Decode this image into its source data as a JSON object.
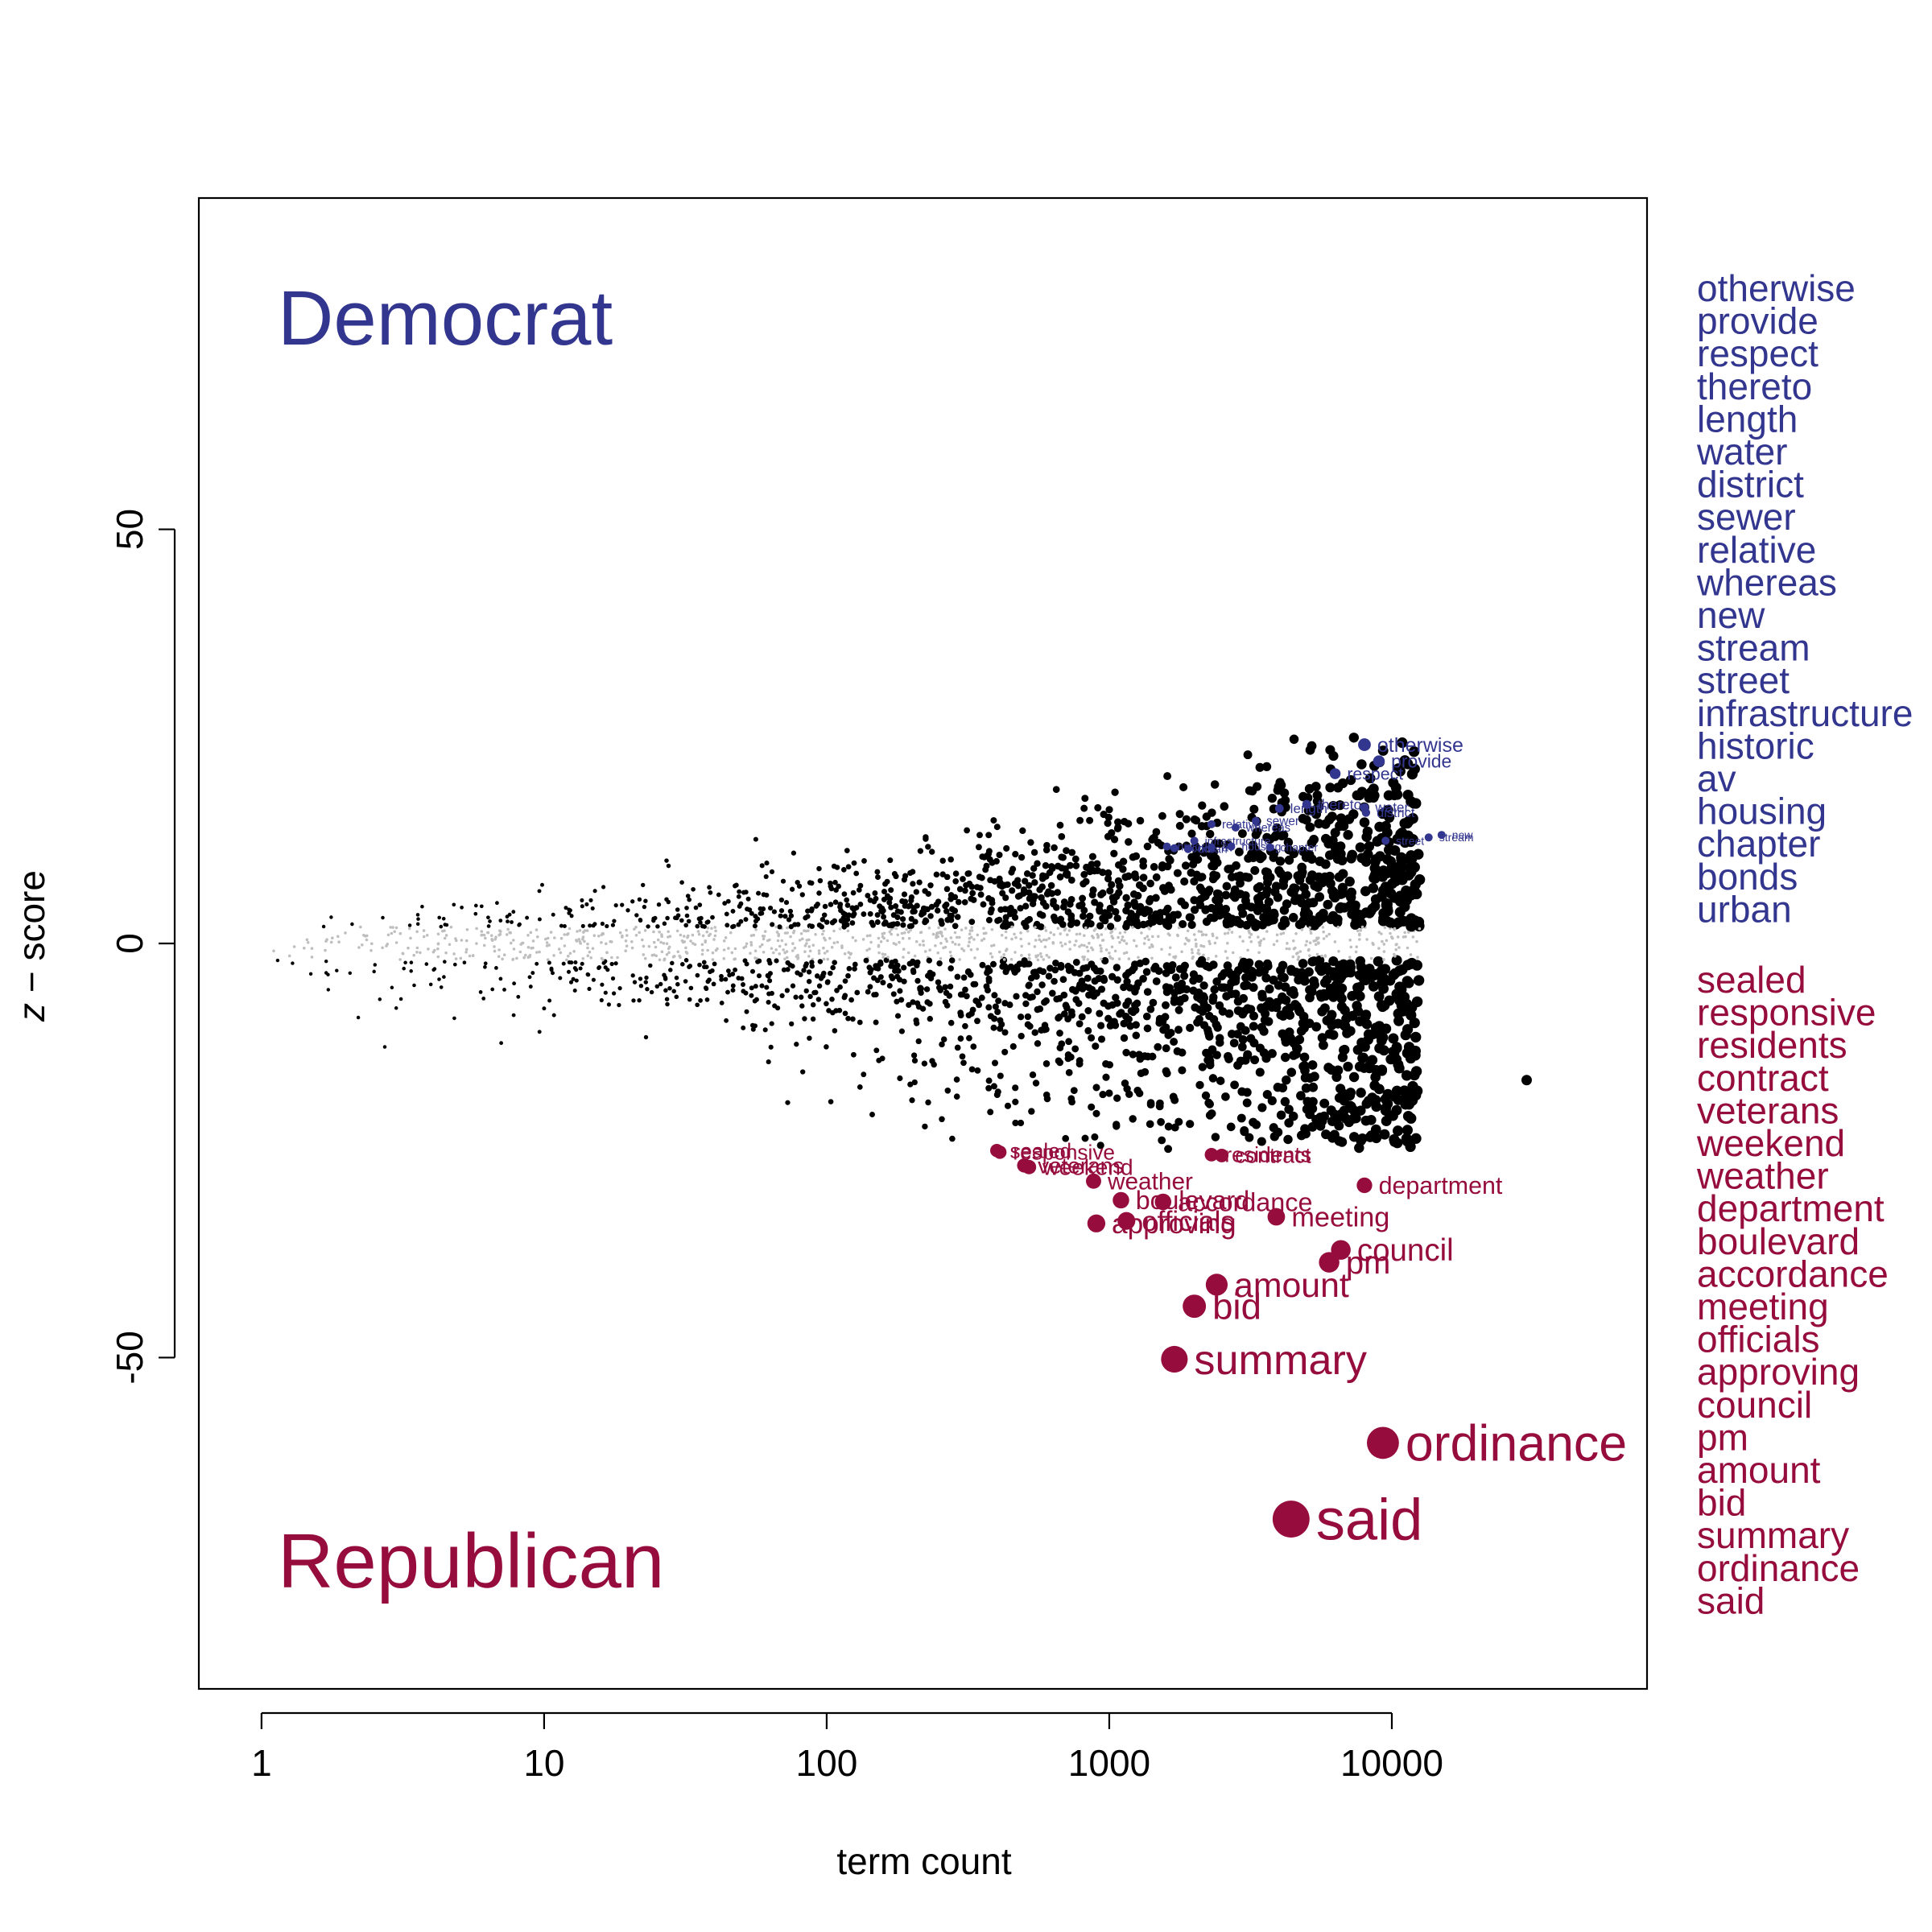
{
  "chart_data": {
    "type": "scatter",
    "title": "",
    "xlabel": "term count",
    "ylabel_parts": [
      "z",
      " − score"
    ],
    "x_scale": "log",
    "xlim": [
      0.6,
      80000
    ],
    "ylim": [
      -90,
      90
    ],
    "x_ticks": [
      1,
      10,
      100,
      1000,
      10000
    ],
    "x_tick_labels": [
      "1",
      "10",
      "100",
      "1000",
      "10000"
    ],
    "y_ticks": [
      -50,
      0,
      50
    ],
    "y_tick_labels": [
      "-50",
      "0",
      "50"
    ],
    "grid": false,
    "legend": "none",
    "colors": {
      "democrat": "#33368F",
      "republican": "#960C3C",
      "neutral": "#000000",
      "insignificant": "#BEBEBE"
    },
    "group_labels": {
      "democrat": "Democrat",
      "republican": "Republican"
    },
    "top_democrat_terms": [
      {
        "term": "otherwise",
        "count": 8000,
        "z": 24
      },
      {
        "term": "provide",
        "count": 9000,
        "z": 22
      },
      {
        "term": "respect",
        "count": 6300,
        "z": 20.5
      },
      {
        "term": "thereto",
        "count": 5000,
        "z": 16.8
      },
      {
        "term": "length",
        "count": 4000,
        "z": 16.3
      },
      {
        "term": "water",
        "count": 8000,
        "z": 16.4
      },
      {
        "term": "district",
        "count": 8100,
        "z": 15.8
      },
      {
        "term": "sewer",
        "count": 3300,
        "z": 14.8
      },
      {
        "term": "relative",
        "count": 2300,
        "z": 14.4
      },
      {
        "term": "whereas",
        "count": 2800,
        "z": 14.0
      },
      {
        "term": "new",
        "count": 15000,
        "z": 13.1
      },
      {
        "term": "stream",
        "count": 13500,
        "z": 12.8
      },
      {
        "term": "street",
        "count": 9500,
        "z": 12.4
      },
      {
        "term": "infrastructure",
        "count": 2000,
        "z": 12.4
      },
      {
        "term": "historic",
        "count": 1600,
        "z": 11.7
      },
      {
        "term": "av",
        "count": 2300,
        "z": 11.6
      },
      {
        "term": "housing",
        "count": 2700,
        "z": 11.7
      },
      {
        "term": "chapter",
        "count": 3700,
        "z": 11.6
      },
      {
        "term": "bonds",
        "count": 1700,
        "z": 11.5
      },
      {
        "term": "urban",
        "count": 1900,
        "z": 11.4
      }
    ],
    "top_republican_terms": [
      {
        "term": "sealed",
        "count": 400,
        "z": -25
      },
      {
        "term": "responsive",
        "count": 410,
        "z": -25.2
      },
      {
        "term": "residents",
        "count": 2300,
        "z": -25.5
      },
      {
        "term": "contract",
        "count": 2500,
        "z": -25.6
      },
      {
        "term": "veterans",
        "count": 500,
        "z": -26.8
      },
      {
        "term": "weekend",
        "count": 520,
        "z": -27.0
      },
      {
        "term": "weather",
        "count": 880,
        "z": -28.7
      },
      {
        "term": "department",
        "count": 8000,
        "z": -29.2
      },
      {
        "term": "boulevard",
        "count": 1100,
        "z": -31
      },
      {
        "term": "accordance",
        "count": 1550,
        "z": -31.2
      },
      {
        "term": "meeting",
        "count": 3900,
        "z": -33
      },
      {
        "term": "officials",
        "count": 1150,
        "z": -33.5
      },
      {
        "term": "approving",
        "count": 900,
        "z": -33.8
      },
      {
        "term": "council",
        "count": 6600,
        "z": -37
      },
      {
        "term": "pm",
        "count": 6000,
        "z": -38.5
      },
      {
        "term": "amount",
        "count": 2400,
        "z": -41.2
      },
      {
        "term": "bid",
        "count": 2000,
        "z": -43.8
      },
      {
        "term": "summary",
        "count": 1700,
        "z": -50.2
      },
      {
        "term": "ordinance",
        "count": 9300,
        "z": -60.3
      },
      {
        "term": "said",
        "count": 4400,
        "z": -69.5
      }
    ],
    "background_points": "thousands of unlabeled terms: grey where |z| is small, black where significant; funnel widens with term count"
  }
}
